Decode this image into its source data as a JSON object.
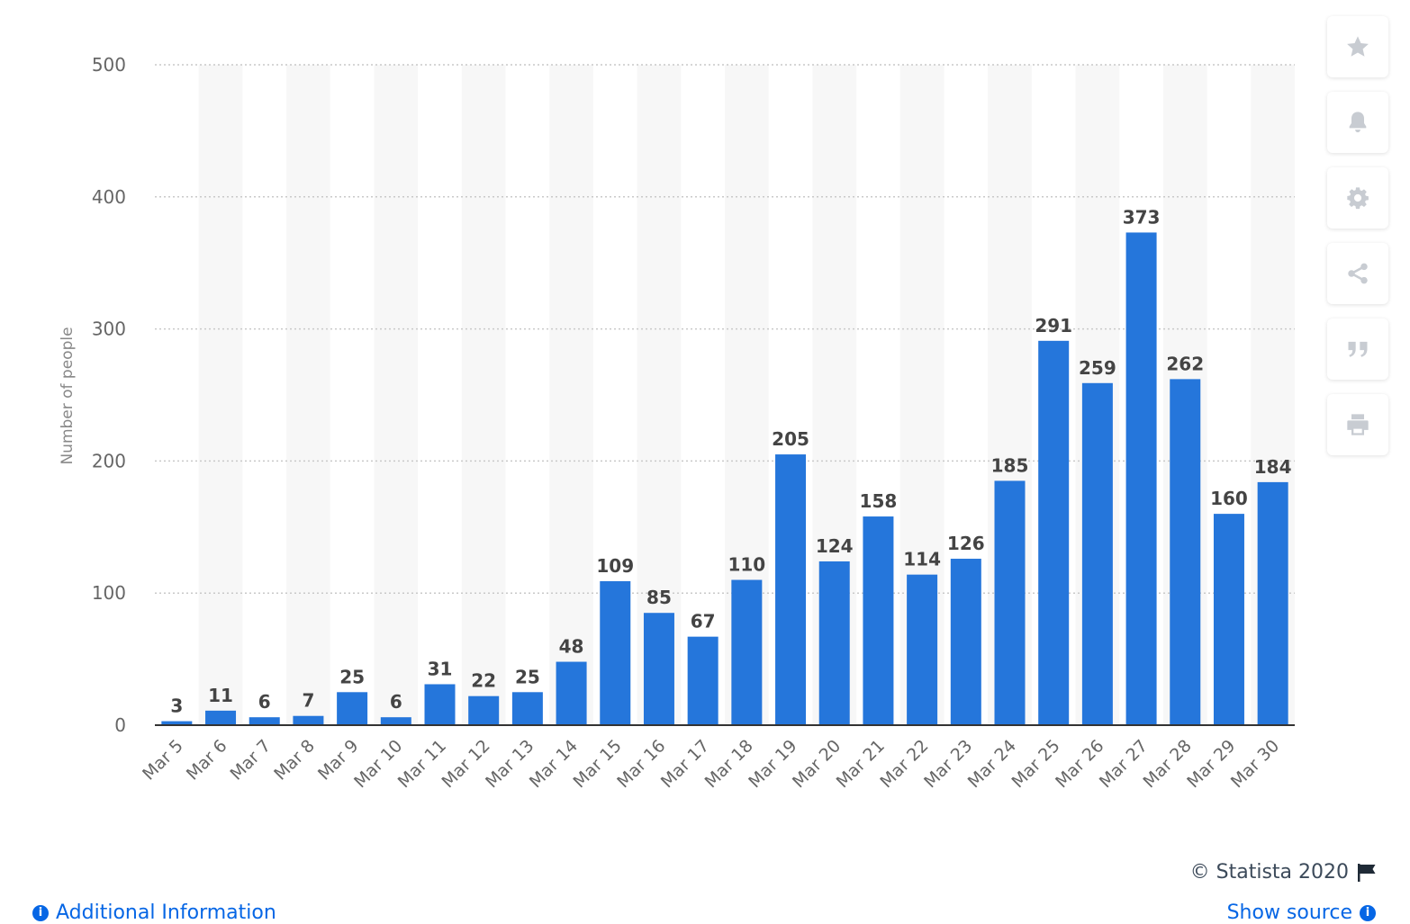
{
  "chart_data": {
    "type": "bar",
    "title": "",
    "xlabel": "",
    "ylabel": "Number of people",
    "ylim": [
      0,
      500
    ],
    "yticks": [
      0,
      100,
      200,
      300,
      400,
      500
    ],
    "grid": true,
    "bar_color": "#2576db",
    "categories": [
      "Mar 5",
      "Mar 6",
      "Mar 7",
      "Mar 8",
      "Mar 9",
      "Mar 10",
      "Mar 11",
      "Mar 12",
      "Mar 13",
      "Mar 14",
      "Mar 15",
      "Mar 16",
      "Mar 17",
      "Mar 18",
      "Mar 19",
      "Mar 20",
      "Mar 21",
      "Mar 22",
      "Mar 23",
      "Mar 24",
      "Mar 25",
      "Mar 26",
      "Mar 27",
      "Mar 28",
      "Mar 29",
      "Mar 30"
    ],
    "values": [
      3,
      11,
      6,
      7,
      25,
      6,
      31,
      22,
      25,
      48,
      109,
      85,
      67,
      110,
      205,
      124,
      158,
      114,
      126,
      185,
      291,
      259,
      373,
      262,
      160,
      184
    ]
  },
  "toolbar": {
    "items": [
      {
        "name": "favorite-button",
        "icon": "star-icon"
      },
      {
        "name": "notification-button",
        "icon": "bell-icon"
      },
      {
        "name": "settings-button",
        "icon": "gear-icon"
      },
      {
        "name": "share-button",
        "icon": "share-icon"
      },
      {
        "name": "cite-button",
        "icon": "quote-icon"
      },
      {
        "name": "print-button",
        "icon": "printer-icon"
      }
    ]
  },
  "footer": {
    "credit": "© Statista 2020",
    "additional_info": "Additional Information",
    "show_source": "Show source"
  }
}
